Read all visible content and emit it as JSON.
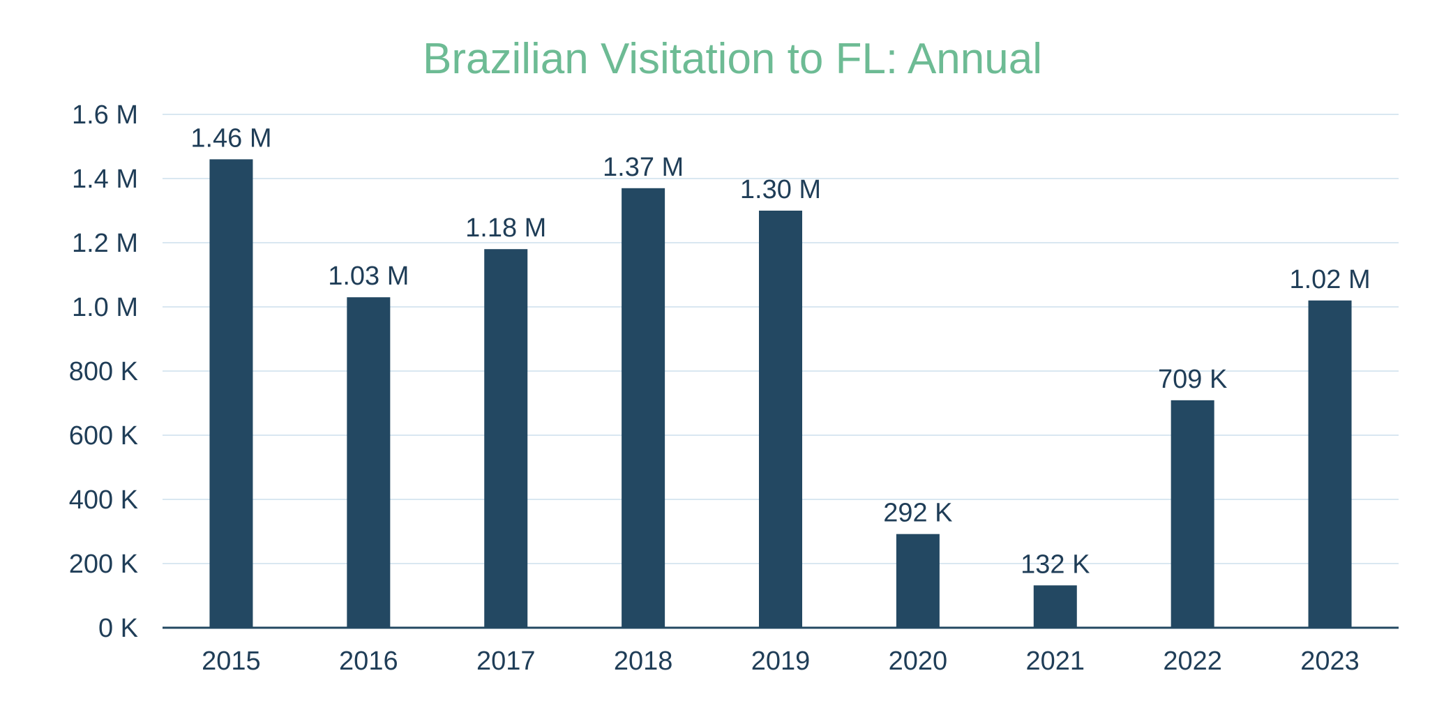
{
  "colors": {
    "title": "#6dbb94",
    "bar": "#234862",
    "text": "#1f3d57",
    "grid": "#d9e7f1",
    "axis": "#234862"
  },
  "chart_data": {
    "type": "bar",
    "title": "Brazilian Visitation to FL: Annual",
    "xlabel": "",
    "ylabel": "",
    "categories": [
      "2015",
      "2016",
      "2017",
      "2018",
      "2019",
      "2020",
      "2021",
      "2022",
      "2023"
    ],
    "values": [
      1460000,
      1030000,
      1180000,
      1370000,
      1300000,
      292000,
      132000,
      709000,
      1020000
    ],
    "data_labels": [
      "1.46 M",
      "1.03 M",
      "1.18 M",
      "1.37 M",
      "1.30 M",
      "292 K",
      "132 K",
      "709 K",
      "1.02 M"
    ],
    "ylim": [
      0,
      1600000
    ],
    "yticks": [
      0,
      200000,
      400000,
      600000,
      800000,
      1000000,
      1200000,
      1400000,
      1600000
    ],
    "ytick_labels": [
      "0 K",
      "200 K",
      "400 K",
      "600 K",
      "800 K",
      "1.0 M",
      "1.2 M",
      "1.4 M",
      "1.6 M"
    ],
    "grid": true,
    "legend": "none"
  }
}
